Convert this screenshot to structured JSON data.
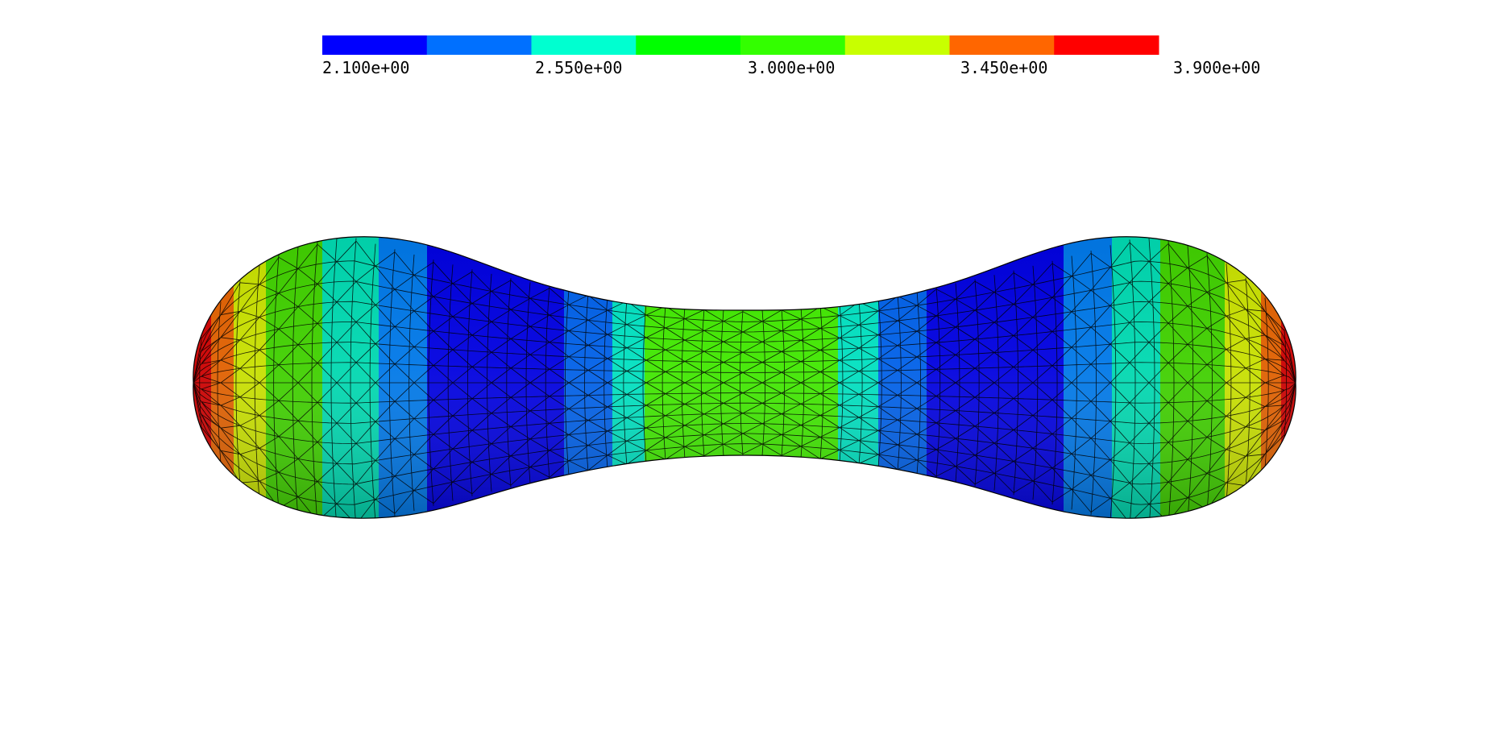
{
  "colorbar": {
    "segments": [
      {
        "color": "#0000ff"
      },
      {
        "color": "#0070ff"
      },
      {
        "color": "#00ffd0"
      },
      {
        "color": "#00ff00"
      },
      {
        "color": "#33ff00"
      },
      {
        "color": "#c8ff00"
      },
      {
        "color": "#ff6600"
      },
      {
        "color": "#ff0000"
      }
    ],
    "tick_labels": [
      "2.100e+00",
      "2.550e+00",
      "3.000e+00",
      "3.450e+00",
      "3.900e+00"
    ]
  },
  "surface": {
    "shape": "dumbbell-shaped closed surface with triangular mesh",
    "band_colors_left_to_right": [
      "#cc0000",
      "#e06000",
      "#c8e000",
      "#40d000",
      "#00d8b0",
      "#0078e8",
      "#0000e0",
      "#0060e8",
      "#00e0c0",
      "#40e800",
      "#00e0c0",
      "#0060e8",
      "#0000e0",
      "#0078e8",
      "#00d8b0",
      "#40d000",
      "#c8e000",
      "#e06000",
      "#cc0000"
    ],
    "accent_colors": {
      "mesh_lines": "#000000",
      "background": "#ffffff"
    }
  }
}
